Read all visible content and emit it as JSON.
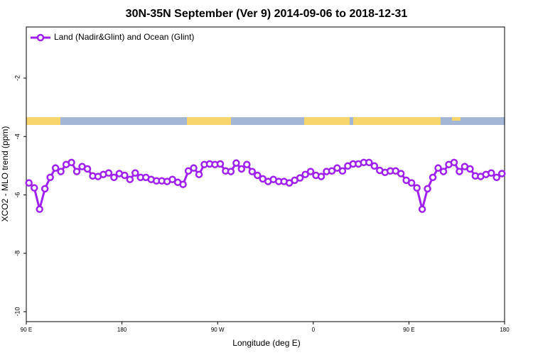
{
  "chart_data": {
    "type": "line",
    "title": "30N-35N September (Ver 9)   2014-09-06 to 2018-12-31",
    "xlabel": "Longitude (deg E)",
    "ylabel": "XCO2 - MLO trend (ppm)",
    "xlim": [
      90,
      540
    ],
    "ylim": [
      -10.34,
      -0.25
    ],
    "xticks": [
      {
        "value": 90,
        "label": "90 E"
      },
      180,
      {
        "value": 270,
        "label": "90 W"
      },
      {
        "value": 360,
        "label": "0"
      },
      {
        "value": 450,
        "label": "90 E"
      },
      {
        "value": 540,
        "label": "180"
      }
    ],
    "yticks": [
      -10,
      -8,
      -6,
      -4,
      -2
    ],
    "legend": "upper left",
    "x": [
      92.5,
      97.5,
      102.5,
      107.5,
      112.5,
      117.5,
      122.5,
      127.5,
      132.5,
      137.5,
      142.5,
      147.5,
      152.5,
      157.5,
      162.5,
      167.5,
      172.5,
      177.5,
      182.5,
      187.5,
      192.5,
      197.5,
      202.5,
      207.5,
      212.5,
      217.5,
      222.5,
      227.5,
      232.5,
      237.5,
      242.5,
      247.5,
      252.5,
      257.5,
      262.5,
      267.5,
      272.5,
      277.5,
      282.5,
      287.5,
      292.5,
      297.5,
      302.5,
      307.5,
      312.5,
      317.5,
      322.5,
      327.5,
      332.5,
      337.5,
      342.5,
      347.5,
      352.5,
      357.5,
      362.5,
      367.5,
      372.5,
      377.5,
      382.5,
      387.5,
      392.5,
      397.5,
      402.5,
      407.5,
      412.5,
      417.5,
      422.5,
      427.5,
      432.5,
      437.5,
      442.5,
      447.5,
      452.5,
      457.5,
      462.5,
      467.5,
      472.5,
      477.5,
      482.5,
      487.5,
      492.5,
      497.5,
      502.5,
      507.5,
      512.5,
      517.5,
      522.5,
      527.5,
      532.5,
      537.5
    ],
    "series": [
      {
        "name": "Land (Nadir&Glint) and Ocean (Glint)",
        "color": "#a020f0",
        "values": [
          -5.59,
          -5.76,
          -6.49,
          -5.79,
          -5.4,
          -5.08,
          -5.2,
          -4.96,
          -4.89,
          -5.2,
          -5.03,
          -5.11,
          -5.35,
          -5.37,
          -5.3,
          -5.25,
          -5.4,
          -5.27,
          -5.33,
          -5.47,
          -5.25,
          -5.4,
          -5.4,
          -5.47,
          -5.52,
          -5.52,
          -5.54,
          -5.47,
          -5.57,
          -5.64,
          -5.18,
          -5.08,
          -5.3,
          -4.96,
          -4.94,
          -4.96,
          -4.94,
          -5.18,
          -5.2,
          -4.91,
          -5.11,
          -4.96,
          -5.2,
          -5.33,
          -5.45,
          -5.54,
          -5.47,
          -5.54,
          -5.54,
          -5.59,
          -5.5,
          -5.42,
          -5.3,
          -5.2,
          -5.33,
          -5.37,
          -5.2,
          -5.18,
          -5.08,
          -5.18,
          -5.01,
          -4.94,
          -4.94,
          -4.89,
          -4.89,
          -5.01,
          -5.16,
          -5.23,
          -5.18,
          -5.18,
          -5.27,
          -5.5,
          -5.59,
          -5.76,
          -6.49,
          -5.79,
          -5.4,
          -5.08,
          -5.2,
          -4.96,
          -4.89,
          -5.2,
          -5.03,
          -5.11,
          -5.35,
          -5.37,
          -5.3,
          -5.25,
          -5.4,
          -5.27
        ]
      }
    ]
  }
}
